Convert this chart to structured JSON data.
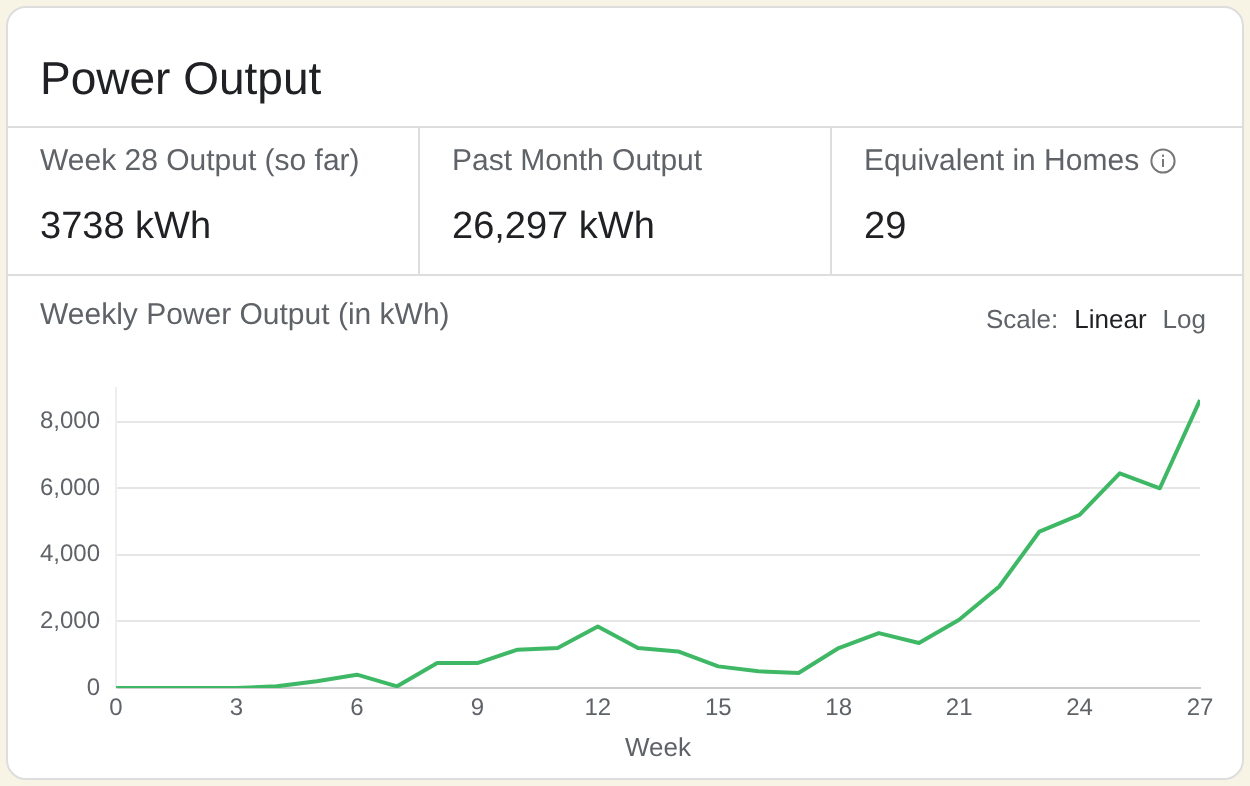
{
  "chart_data": [
    {
      "type": "other",
      "title": "Power Output",
      "annotations": [
        "Week 28 Output (so far)",
        "3738 kWh",
        "Past Month Output",
        "26,297 kWh",
        "Equivalent in Homes",
        "29"
      ]
    },
    {
      "type": "line",
      "title": "Weekly Power Output (in kWh)",
      "xlabel": "Week",
      "annotations": [
        "Scale:",
        "Linear",
        "Log"
      ],
      "x": [
        0,
        1,
        2,
        3,
        4,
        5,
        6,
        7,
        8,
        9,
        10,
        11,
        12,
        13,
        14,
        15,
        16,
        17,
        18,
        19,
        20,
        21,
        22,
        23,
        24,
        25,
        26,
        27
      ],
      "series": [
        {
          "color": "#3fb866",
          "values": [
            0,
            0,
            0,
            0,
            50,
            200,
            400,
            50,
            750,
            750,
            1150,
            1200,
            1850,
            1200,
            1100,
            650,
            500,
            450,
            1200,
            1650,
            1350,
            2050,
            3050,
            4700,
            5200,
            6450,
            6000,
            8650
          ]
        }
      ],
      "xlim": [
        0,
        27
      ],
      "xticks": [
        0,
        3,
        6,
        9,
        12,
        15,
        18,
        21,
        24,
        27
      ],
      "ylim": [
        0,
        9000
      ],
      "yticks": [
        0,
        {
          "value": 2000,
          "label": "2,000"
        },
        {
          "value": 4000,
          "label": "4,000"
        },
        {
          "value": 6000,
          "label": "6,000"
        },
        {
          "value": 8000,
          "label": "8,000"
        }
      ],
      "grid": "y",
      "legend": false,
      "marker": "none",
      "line_style": "solid"
    }
  ]
}
